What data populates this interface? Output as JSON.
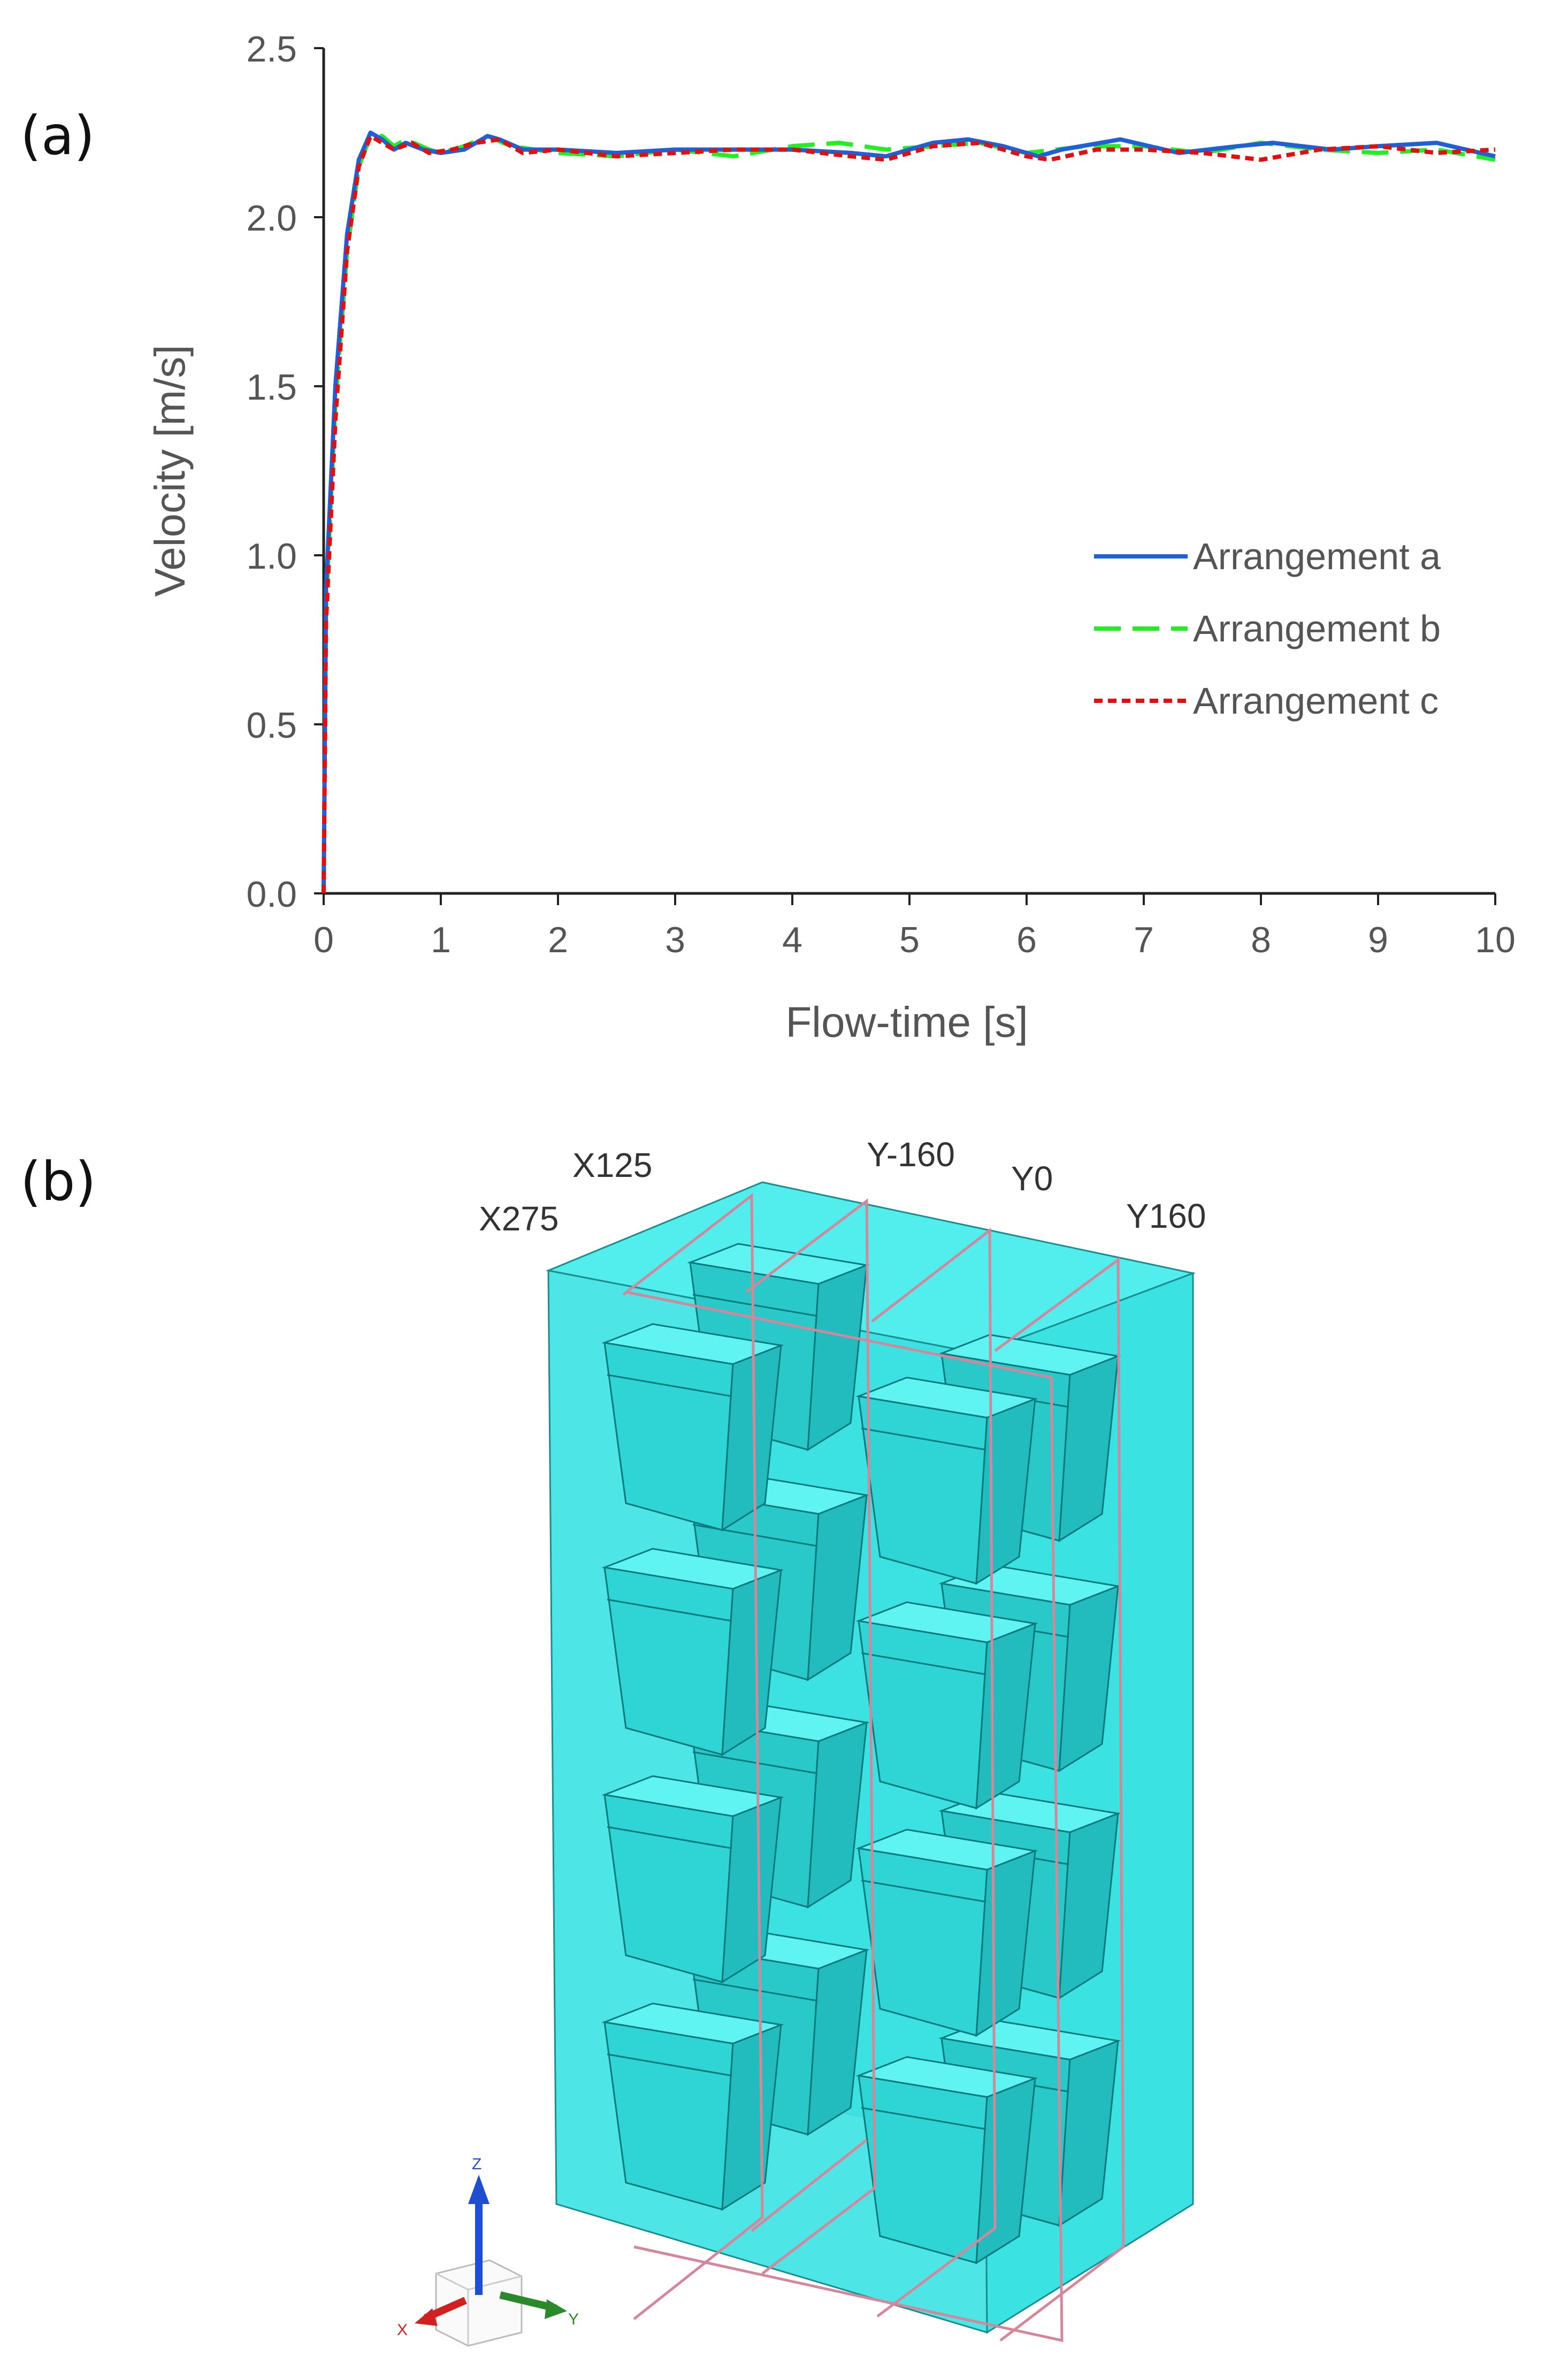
{
  "panels": {
    "a_label": "(a)",
    "b_label": "(b)"
  },
  "chart_data": {
    "type": "line",
    "xlabel": "Flow-time [s]",
    "ylabel": "Velocity [m/s]",
    "xlim": [
      0,
      10
    ],
    "ylim": [
      0,
      2.5
    ],
    "x_ticks": [
      "0",
      "1",
      "2",
      "3",
      "4",
      "5",
      "6",
      "7",
      "8",
      "9",
      "10"
    ],
    "y_ticks": [
      "0.0",
      "0.5",
      "1.0",
      "1.5",
      "2.0",
      "2.5"
    ],
    "grid": false,
    "legend_position": "right",
    "series": [
      {
        "name": "Arrangement a",
        "color": "#1f5fd8",
        "dash": "solid",
        "points": [
          [
            0,
            0
          ],
          [
            0.02,
            0.9
          ],
          [
            0.1,
            1.5
          ],
          [
            0.2,
            1.95
          ],
          [
            0.3,
            2.17
          ],
          [
            0.4,
            2.25
          ],
          [
            0.5,
            2.23
          ],
          [
            0.6,
            2.2
          ],
          [
            0.7,
            2.22
          ],
          [
            0.85,
            2.2
          ],
          [
            1.0,
            2.19
          ],
          [
            1.2,
            2.2
          ],
          [
            1.4,
            2.24
          ],
          [
            1.5,
            2.23
          ],
          [
            1.7,
            2.2
          ],
          [
            2.0,
            2.2
          ],
          [
            2.5,
            2.19
          ],
          [
            3.0,
            2.2
          ],
          [
            3.5,
            2.2
          ],
          [
            4.0,
            2.2
          ],
          [
            4.5,
            2.19
          ],
          [
            4.8,
            2.18
          ],
          [
            5.2,
            2.22
          ],
          [
            5.5,
            2.23
          ],
          [
            5.8,
            2.21
          ],
          [
            6.1,
            2.18
          ],
          [
            6.3,
            2.2
          ],
          [
            6.8,
            2.23
          ],
          [
            7.3,
            2.19
          ],
          [
            7.8,
            2.21
          ],
          [
            8.1,
            2.22
          ],
          [
            8.6,
            2.2
          ],
          [
            9.0,
            2.21
          ],
          [
            9.5,
            2.22
          ],
          [
            10.0,
            2.18
          ]
        ]
      },
      {
        "name": "Arrangement b",
        "color": "#22ee22",
        "dash": "long-dash",
        "points": [
          [
            0,
            0
          ],
          [
            0.02,
            0.85
          ],
          [
            0.1,
            1.45
          ],
          [
            0.2,
            1.9
          ],
          [
            0.3,
            2.15
          ],
          [
            0.4,
            2.24
          ],
          [
            0.5,
            2.24
          ],
          [
            0.6,
            2.21
          ],
          [
            0.7,
            2.23
          ],
          [
            0.9,
            2.2
          ],
          [
            1.0,
            2.19
          ],
          [
            1.2,
            2.21
          ],
          [
            1.4,
            2.24
          ],
          [
            1.6,
            2.21
          ],
          [
            2.0,
            2.19
          ],
          [
            2.5,
            2.18
          ],
          [
            3.0,
            2.2
          ],
          [
            3.5,
            2.18
          ],
          [
            4.0,
            2.21
          ],
          [
            4.4,
            2.22
          ],
          [
            4.8,
            2.2
          ],
          [
            5.2,
            2.21
          ],
          [
            5.6,
            2.22
          ],
          [
            6.0,
            2.19
          ],
          [
            6.5,
            2.21
          ],
          [
            7.0,
            2.21
          ],
          [
            7.5,
            2.19
          ],
          [
            8.0,
            2.22
          ],
          [
            8.5,
            2.2
          ],
          [
            9.0,
            2.19
          ],
          [
            9.5,
            2.2
          ],
          [
            10.0,
            2.17
          ]
        ]
      },
      {
        "name": "Arrangement c",
        "color": "#e01010",
        "dash": "short-dash",
        "points": [
          [
            0,
            0
          ],
          [
            0.02,
            0.8
          ],
          [
            0.1,
            1.4
          ],
          [
            0.2,
            1.9
          ],
          [
            0.3,
            2.15
          ],
          [
            0.4,
            2.24
          ],
          [
            0.5,
            2.22
          ],
          [
            0.6,
            2.2
          ],
          [
            0.75,
            2.22
          ],
          [
            0.9,
            2.19
          ],
          [
            1.1,
            2.2
          ],
          [
            1.3,
            2.22
          ],
          [
            1.5,
            2.23
          ],
          [
            1.7,
            2.19
          ],
          [
            2.0,
            2.2
          ],
          [
            2.5,
            2.18
          ],
          [
            3.0,
            2.19
          ],
          [
            3.5,
            2.2
          ],
          [
            4.0,
            2.2
          ],
          [
            4.5,
            2.18
          ],
          [
            4.8,
            2.17
          ],
          [
            5.2,
            2.21
          ],
          [
            5.6,
            2.22
          ],
          [
            6.0,
            2.18
          ],
          [
            6.2,
            2.17
          ],
          [
            6.6,
            2.2
          ],
          [
            7.0,
            2.2
          ],
          [
            7.5,
            2.19
          ],
          [
            8.0,
            2.17
          ],
          [
            8.5,
            2.2
          ],
          [
            9.0,
            2.21
          ],
          [
            9.5,
            2.19
          ],
          [
            10.0,
            2.2
          ]
        ]
      }
    ]
  },
  "figure_b": {
    "plane_labels": [
      "X125",
      "X275",
      "Y-160",
      "Y0",
      "Y160"
    ],
    "axis_labels": {
      "z": "Z",
      "x": "X",
      "y": "Y"
    },
    "body_color": "#38e6e6",
    "plane_color": "#d4879a"
  }
}
